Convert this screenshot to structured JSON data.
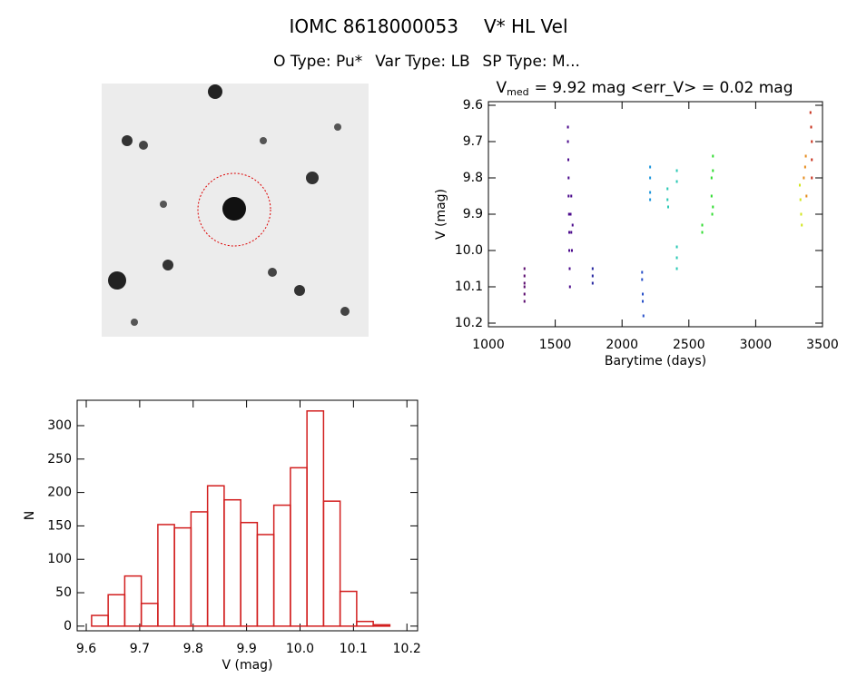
{
  "header": {
    "title_id": "IOMC 8618000053",
    "title_star": "V* HL Vel",
    "o_type": "O Type: Pu*",
    "var_type": "Var Type: LB",
    "sp_type": "SP Type: M...",
    "stat_v": "V",
    "stat_sub": "med",
    "stat_rest": "= 9.92 mag <err_V> = 0.02 mag"
  },
  "chart_data": [
    {
      "type": "scatter",
      "xlabel": "Barytime (days)",
      "ylabel": "V (mag)",
      "xlim": [
        1000,
        3500
      ],
      "xticks": [
        1000,
        1500,
        2000,
        2500,
        3000,
        3500
      ],
      "ylim": [
        10.21,
        9.59
      ],
      "yticks": [
        9.6,
        9.7,
        9.8,
        9.9,
        {
          "value": 10,
          "label": "10.0"
        },
        10.1,
        10.2
      ],
      "series": [
        {
          "color": "#5a0a6e",
          "x": [
            1270,
            1270,
            1270,
            1270,
            1270,
            1270
          ],
          "values": [
            10.05,
            10.07,
            10.09,
            10.1,
            10.12,
            10.14
          ]
        },
        {
          "color": "#4b0a8c",
          "x": [
            1595,
            1595,
            1598,
            1600,
            1600,
            1603,
            1605,
            1605,
            1608,
            1610,
            1615,
            1620,
            1625,
            1630,
            1620
          ],
          "values": [
            9.66,
            9.7,
            9.75,
            9.8,
            9.85,
            9.9,
            9.95,
            10.0,
            10.05,
            10.1,
            9.9,
            9.95,
            10.0,
            9.93,
            9.85
          ]
        },
        {
          "color": "#2828a0",
          "x": [
            1780,
            1780,
            1780
          ],
          "values": [
            10.05,
            10.07,
            10.09
          ]
        },
        {
          "color": "#2850c8",
          "x": [
            2150,
            2150,
            2155,
            2155,
            2160
          ],
          "values": [
            10.06,
            10.08,
            10.12,
            10.14,
            10.18
          ]
        },
        {
          "color": "#1e96dc",
          "x": [
            2210,
            2210,
            2210,
            2210
          ],
          "values": [
            9.77,
            9.8,
            9.84,
            9.86
          ]
        },
        {
          "color": "#28c8b4",
          "x": [
            2340,
            2340,
            2345,
            2410,
            2410,
            2410,
            2410,
            2410
          ],
          "values": [
            9.83,
            9.86,
            9.88,
            9.78,
            9.81,
            9.99,
            10.02,
            10.05
          ]
        },
        {
          "color": "#32dc32",
          "x": [
            2600,
            2600,
            2670,
            2670,
            2675,
            2680,
            2680,
            2680
          ],
          "values": [
            9.93,
            9.95,
            9.8,
            9.85,
            9.9,
            9.74,
            9.78,
            9.88
          ]
        },
        {
          "color": "#d2e61e",
          "x": [
            3330,
            3335,
            3340,
            3345
          ],
          "values": [
            9.82,
            9.86,
            9.9,
            9.93
          ]
        },
        {
          "color": "#e68c1e",
          "x": [
            3360,
            3370,
            3375,
            3380
          ],
          "values": [
            9.8,
            9.77,
            9.74,
            9.85
          ]
        },
        {
          "color": "#c8321e",
          "x": [
            3410,
            3415,
            3420,
            3420,
            3420
          ],
          "values": [
            9.62,
            9.66,
            9.7,
            9.75,
            9.8
          ]
        }
      ]
    },
    {
      "type": "histogram",
      "xlabel": "V (mag)",
      "ylabel": "N",
      "color": "#d21e1e",
      "xlim": [
        9.583,
        10.22
      ],
      "xticks": [
        9.6,
        9.7,
        9.8,
        9.9,
        {
          "value": 10,
          "label": "10.0"
        },
        10.1,
        10.2
      ],
      "ylim": [
        -7,
        338
      ],
      "yticks": [
        0,
        50,
        100,
        150,
        200,
        250,
        300
      ],
      "bins": [
        9.61,
        9.641,
        9.672,
        9.703,
        9.734,
        9.765,
        9.796,
        9.827,
        9.858,
        9.889,
        9.92,
        9.951,
        9.982,
        10.013,
        10.044,
        10.075,
        10.106,
        10.137,
        10.168
      ],
      "values": [
        16,
        47,
        75,
        34,
        152,
        147,
        171,
        210,
        189,
        155,
        137,
        181,
        237,
        322,
        187,
        52,
        7,
        2
      ]
    }
  ]
}
